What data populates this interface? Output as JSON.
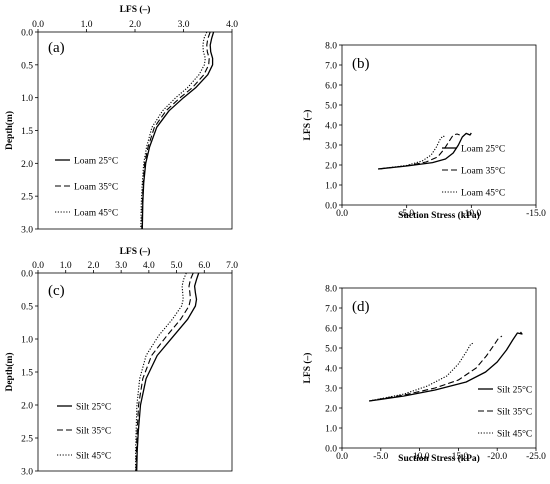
{
  "chart_data": [
    {
      "type": "line",
      "panel_label": "(a)",
      "xlabel": "LFS (–)",
      "ylabel": "Depth(m)",
      "xlim": [
        0,
        4
      ],
      "ylim": [
        0,
        3
      ],
      "x_ticks": [
        "0.0",
        "1.0",
        "2.0",
        "3.0",
        "4.0"
      ],
      "y_ticks": [
        "0.0",
        "0.5",
        "1.0",
        "1.5",
        "2.0",
        "2.5",
        "3.0"
      ],
      "x_axis_position": "top",
      "y_reversed": true,
      "legend_position": "bottom-left",
      "series": [
        {
          "name": "Loam 25°C",
          "style": "solid",
          "points": [
            [
              3.62,
              0.0
            ],
            [
              3.58,
              0.1
            ],
            [
              3.55,
              0.2
            ],
            [
              3.56,
              0.3
            ],
            [
              3.6,
              0.4
            ],
            [
              3.6,
              0.5
            ],
            [
              3.5,
              0.65
            ],
            [
              3.25,
              0.85
            ],
            [
              3.0,
              1.0
            ],
            [
              2.7,
              1.2
            ],
            [
              2.45,
              1.45
            ],
            [
              2.3,
              1.75
            ],
            [
              2.22,
              2.0
            ],
            [
              2.18,
              2.3
            ],
            [
              2.16,
              2.6
            ],
            [
              2.15,
              3.0
            ]
          ]
        },
        {
          "name": "Loam 35°C",
          "style": "dashed",
          "points": [
            [
              3.55,
              0.0
            ],
            [
              3.5,
              0.1
            ],
            [
              3.48,
              0.2
            ],
            [
              3.49,
              0.3
            ],
            [
              3.53,
              0.4
            ],
            [
              3.52,
              0.5
            ],
            [
              3.42,
              0.65
            ],
            [
              3.18,
              0.85
            ],
            [
              2.93,
              1.0
            ],
            [
              2.64,
              1.2
            ],
            [
              2.4,
              1.45
            ],
            [
              2.27,
              1.75
            ],
            [
              2.2,
              2.0
            ],
            [
              2.17,
              2.3
            ],
            [
              2.15,
              2.6
            ],
            [
              2.14,
              3.0
            ]
          ]
        },
        {
          "name": "Loam 45°C",
          "style": "dotted",
          "points": [
            [
              3.48,
              0.0
            ],
            [
              3.42,
              0.1
            ],
            [
              3.4,
              0.2
            ],
            [
              3.41,
              0.3
            ],
            [
              3.45,
              0.4
            ],
            [
              3.43,
              0.5
            ],
            [
              3.32,
              0.65
            ],
            [
              3.08,
              0.85
            ],
            [
              2.84,
              1.0
            ],
            [
              2.57,
              1.2
            ],
            [
              2.35,
              1.45
            ],
            [
              2.24,
              1.75
            ],
            [
              2.18,
              2.0
            ],
            [
              2.15,
              2.3
            ],
            [
              2.13,
              2.6
            ],
            [
              2.12,
              3.0
            ]
          ]
        }
      ]
    },
    {
      "type": "line",
      "panel_label": "(b)",
      "xlabel": "Suction Stress (kPa)",
      "ylabel": "LFS (–)",
      "xlim": [
        0,
        -15
      ],
      "ylim": [
        0,
        8
      ],
      "x_ticks": [
        "0.0",
        "-5.0",
        "-10.0",
        "-15.0"
      ],
      "y_ticks": [
        "0.0",
        "1.0",
        "2.0",
        "3.0",
        "4.0",
        "5.0",
        "6.0",
        "7.0",
        "8.0"
      ],
      "legend_position": "right",
      "series": [
        {
          "name": "Loam 25°C",
          "style": "solid",
          "points": [
            [
              -2.8,
              1.8
            ],
            [
              -5.0,
              1.95
            ],
            [
              -7.0,
              2.12
            ],
            [
              -8.0,
              2.3
            ],
            [
              -8.6,
              2.6
            ],
            [
              -9.0,
              3.0
            ],
            [
              -9.3,
              3.4
            ],
            [
              -9.6,
              3.58
            ],
            [
              -9.9,
              3.5
            ],
            [
              -10.0,
              3.6
            ]
          ]
        },
        {
          "name": "Loam 35°C",
          "style": "dashed",
          "points": [
            [
              -2.8,
              1.8
            ],
            [
              -5.0,
              1.96
            ],
            [
              -6.5,
              2.15
            ],
            [
              -7.4,
              2.4
            ],
            [
              -7.9,
              2.8
            ],
            [
              -8.3,
              3.2
            ],
            [
              -8.6,
              3.5
            ],
            [
              -8.9,
              3.55
            ],
            [
              -9.1,
              3.5
            ]
          ]
        },
        {
          "name": "Loam 45°C",
          "style": "dotted",
          "points": [
            [
              -2.8,
              1.8
            ],
            [
              -5.0,
              1.98
            ],
            [
              -6.2,
              2.2
            ],
            [
              -6.9,
              2.5
            ],
            [
              -7.3,
              2.9
            ],
            [
              -7.6,
              3.3
            ],
            [
              -7.8,
              3.45
            ],
            [
              -8.0,
              3.4
            ]
          ]
        }
      ]
    },
    {
      "type": "line",
      "panel_label": "(c)",
      "xlabel": "LFS (–)",
      "ylabel": "Depth(m)",
      "xlim": [
        0,
        7
      ],
      "ylim": [
        0,
        3
      ],
      "x_ticks": [
        "0.0",
        "1.0",
        "2.0",
        "3.0",
        "4.0",
        "5.0",
        "6.0",
        "7.0"
      ],
      "y_ticks": [
        "0.0",
        "0.5",
        "1.0",
        "1.5",
        "2.0",
        "2.5",
        "3.0"
      ],
      "x_axis_position": "top",
      "y_reversed": true,
      "legend_position": "bottom-left",
      "series": [
        {
          "name": "Silt 25°C",
          "style": "solid",
          "points": [
            [
              5.8,
              0.0
            ],
            [
              5.72,
              0.1
            ],
            [
              5.65,
              0.2
            ],
            [
              5.68,
              0.3
            ],
            [
              5.72,
              0.4
            ],
            [
              5.68,
              0.5
            ],
            [
              5.4,
              0.7
            ],
            [
              4.9,
              0.95
            ],
            [
              4.3,
              1.25
            ],
            [
              3.9,
              1.6
            ],
            [
              3.7,
              2.0
            ],
            [
              3.62,
              2.4
            ],
            [
              3.58,
              2.7
            ],
            [
              3.56,
              3.0
            ]
          ]
        },
        {
          "name": "Silt 35°C",
          "style": "dashed",
          "points": [
            [
              5.6,
              0.0
            ],
            [
              5.5,
              0.1
            ],
            [
              5.45,
              0.2
            ],
            [
              5.48,
              0.3
            ],
            [
              5.5,
              0.4
            ],
            [
              5.45,
              0.5
            ],
            [
              5.15,
              0.7
            ],
            [
              4.65,
              0.95
            ],
            [
              4.1,
              1.25
            ],
            [
              3.78,
              1.6
            ],
            [
              3.63,
              2.0
            ],
            [
              3.58,
              2.4
            ],
            [
              3.55,
              2.7
            ],
            [
              3.54,
              3.0
            ]
          ]
        },
        {
          "name": "Silt 45°C",
          "style": "dotted",
          "points": [
            [
              5.35,
              0.0
            ],
            [
              5.25,
              0.1
            ],
            [
              5.2,
              0.2
            ],
            [
              5.22,
              0.3
            ],
            [
              5.24,
              0.4
            ],
            [
              5.18,
              0.5
            ],
            [
              4.85,
              0.7
            ],
            [
              4.35,
              0.95
            ],
            [
              3.9,
              1.25
            ],
            [
              3.67,
              1.6
            ],
            [
              3.57,
              2.0
            ],
            [
              3.54,
              2.4
            ],
            [
              3.52,
              2.7
            ],
            [
              3.52,
              3.0
            ]
          ]
        }
      ]
    },
    {
      "type": "line",
      "panel_label": "(d)",
      "xlabel": "Suction Stress (kPa)",
      "ylabel": "LFS (–)",
      "xlim": [
        0,
        -25
      ],
      "ylim": [
        0,
        8
      ],
      "x_ticks": [
        "0.0",
        "-5.0",
        "-10.0",
        "-15.0",
        "-20.0",
        "-25.0"
      ],
      "y_ticks": [
        "0.0",
        "1.0",
        "2.0",
        "3.0",
        "4.0",
        "5.0",
        "6.0",
        "7.0",
        "8.0"
      ],
      "legend_position": "right",
      "series": [
        {
          "name": "Silt 25°C",
          "style": "solid",
          "points": [
            [
              -3.5,
              2.35
            ],
            [
              -8.0,
              2.6
            ],
            [
              -12.0,
              2.9
            ],
            [
              -16.0,
              3.3
            ],
            [
              -18.5,
              3.8
            ],
            [
              -20.0,
              4.3
            ],
            [
              -21.2,
              4.9
            ],
            [
              -22.0,
              5.4
            ],
            [
              -22.6,
              5.75
            ],
            [
              -23.2,
              5.7
            ],
            [
              -23.0,
              5.8
            ]
          ]
        },
        {
          "name": "Silt 35°C",
          "style": "dashed",
          "points": [
            [
              -3.5,
              2.35
            ],
            [
              -8.0,
              2.65
            ],
            [
              -12.0,
              3.0
            ],
            [
              -15.0,
              3.4
            ],
            [
              -17.3,
              4.0
            ],
            [
              -18.6,
              4.6
            ],
            [
              -19.5,
              5.1
            ],
            [
              -20.1,
              5.45
            ],
            [
              -20.6,
              5.6
            ]
          ]
        },
        {
          "name": "Silt 45°C",
          "style": "dotted",
          "points": [
            [
              -3.5,
              2.35
            ],
            [
              -8.0,
              2.7
            ],
            [
              -11.0,
              3.1
            ],
            [
              -13.5,
              3.6
            ],
            [
              -15.0,
              4.2
            ],
            [
              -16.0,
              4.8
            ],
            [
              -16.6,
              5.2
            ],
            [
              -17.0,
              5.25
            ]
          ]
        }
      ]
    }
  ]
}
